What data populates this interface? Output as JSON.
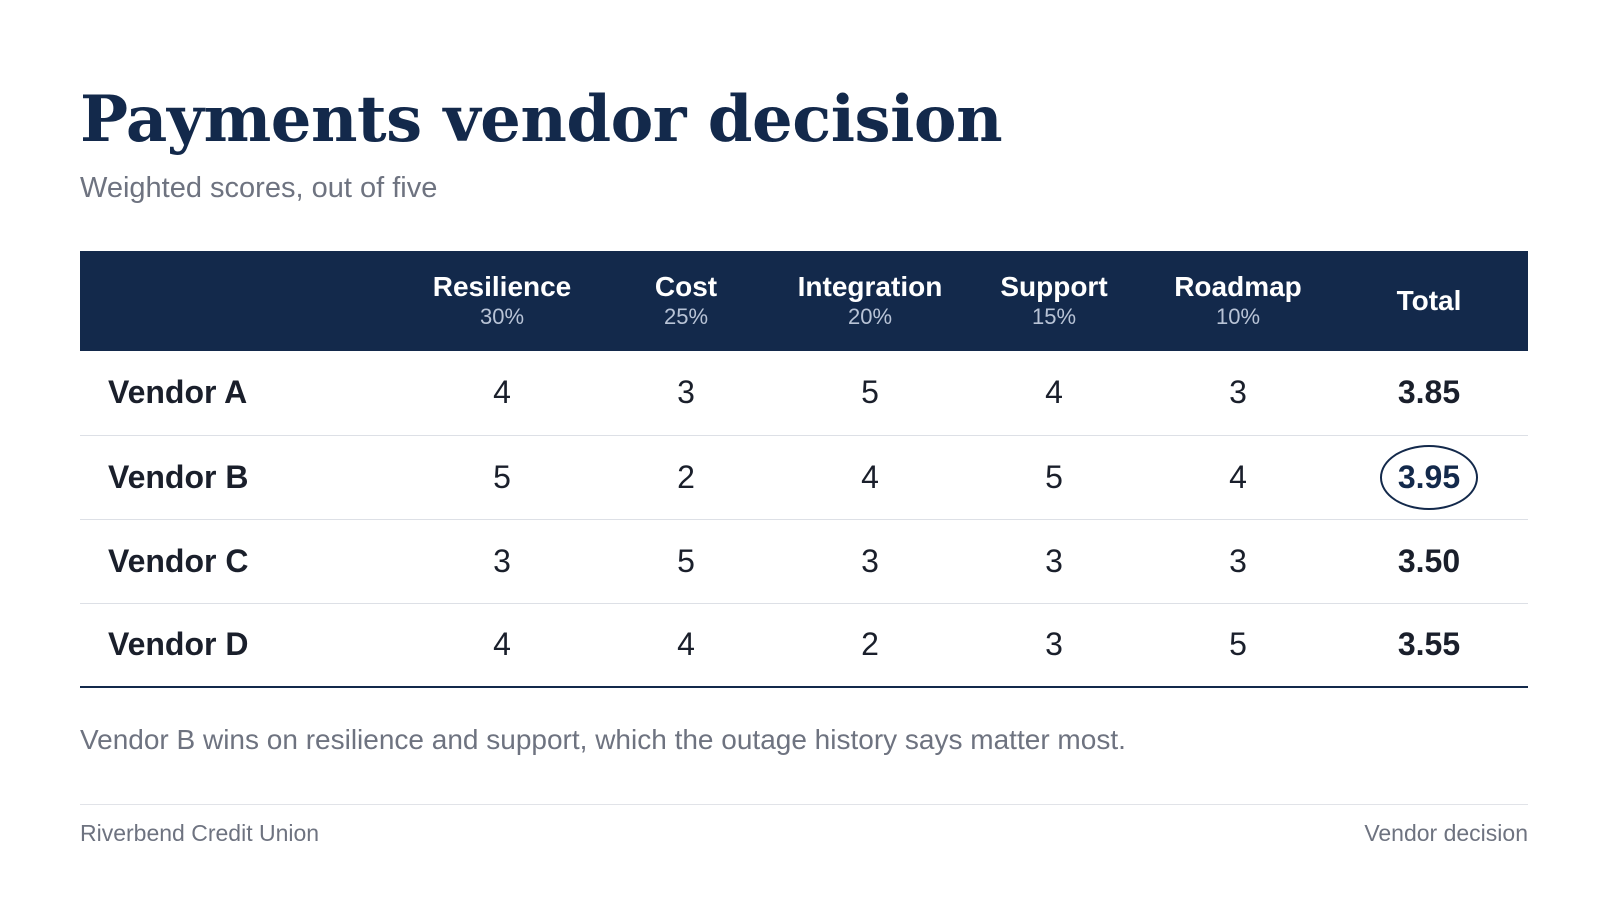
{
  "title": "Payments vendor decision",
  "subtitle": "Weighted scores, out of five",
  "table": {
    "criteria": [
      {
        "name": "Resilience",
        "weight": "30%"
      },
      {
        "name": "Cost",
        "weight": "25%"
      },
      {
        "name": "Integration",
        "weight": "20%"
      },
      {
        "name": "Support",
        "weight": "15%"
      },
      {
        "name": "Roadmap",
        "weight": "10%"
      }
    ],
    "total_label": "Total",
    "rows": [
      {
        "vendor": "Vendor A",
        "scores": [
          "4",
          "3",
          "5",
          "4",
          "3"
        ],
        "total": "3.85",
        "highlighted": false
      },
      {
        "vendor": "Vendor B",
        "scores": [
          "5",
          "2",
          "4",
          "5",
          "4"
        ],
        "total": "3.95",
        "highlighted": true
      },
      {
        "vendor": "Vendor C",
        "scores": [
          "3",
          "5",
          "3",
          "3",
          "3"
        ],
        "total": "3.50",
        "highlighted": false
      },
      {
        "vendor": "Vendor D",
        "scores": [
          "4",
          "4",
          "2",
          "3",
          "5"
        ],
        "total": "3.55",
        "highlighted": false
      }
    ]
  },
  "note": "Vendor B wins on resilience and support, which the outage history says matter most.",
  "footer": {
    "left": "Riverbend Credit Union",
    "right": "Vendor decision"
  },
  "colors": {
    "brand_navy": "#13294b",
    "muted_text": "#6e7380"
  }
}
